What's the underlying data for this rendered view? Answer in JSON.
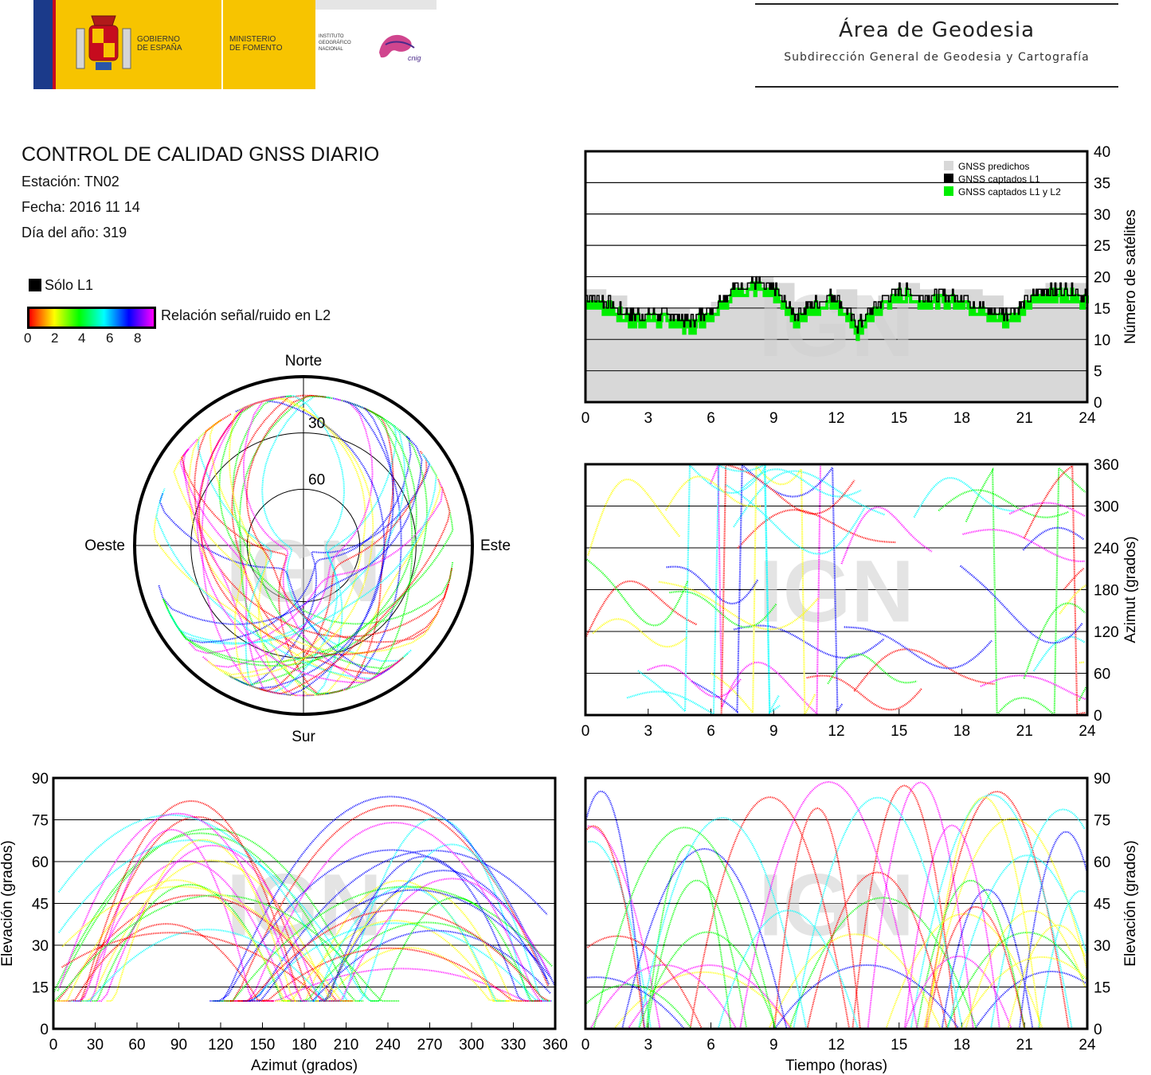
{
  "header": {
    "gov_line1": "GOBIERNO",
    "gov_line2": "DE ESPAÑA",
    "ministry_line1": "MINISTERIO",
    "ministry_line2": "DE FOMENTO",
    "institute_line1": "INSTITUTO",
    "institute_line2": "GEOGRÁFICO",
    "institute_line3": "NACIONAL",
    "institute_mark": "cnig",
    "area_title": "Área de Geodesia",
    "area_subtitle": "Subdirección General de Geodesia y Cartografía"
  },
  "report": {
    "title": "CONTROL DE CALIDAD GNSS DIARIO",
    "station": "Estación: TN02",
    "date": "Fecha: 2016 11 14",
    "day_of_year": "Día del año: 319"
  },
  "legend": {
    "l1_only": "Sólo L1",
    "snr_label": "Relación señal/ruido en L2",
    "snr_ticks": [
      "0",
      "2",
      "4",
      "6",
      "8"
    ],
    "colors": {
      "red": "#ff0000",
      "yellow": "#ffff00",
      "green": "#00ff00",
      "cyan": "#00ffff",
      "blue": "#0000ff",
      "magenta": "#ff00ff"
    }
  },
  "watermark": "IGN",
  "chart_data": [
    {
      "type": "area",
      "ylabel": "Número de satélites",
      "xlim": [
        0,
        24
      ],
      "ylim": [
        0,
        40
      ],
      "x_ticks": [
        "0",
        "3",
        "6",
        "9",
        "12",
        "15",
        "18",
        "21",
        "24"
      ],
      "y_ticks": [
        "0",
        "5",
        "10",
        "15",
        "20",
        "25",
        "30",
        "35",
        "40"
      ],
      "grid": true,
      "legend_placement": "top-right",
      "series": [
        {
          "name": "GNSS predichos",
          "color": "#d8d8d8"
        },
        {
          "name": "GNSS captados L1",
          "color": "#000000"
        },
        {
          "name": "GNSS captados L1 y L2",
          "color": "#00ee00"
        }
      ],
      "x": [
        0,
        1,
        2,
        3,
        4,
        5,
        6,
        7,
        8,
        9,
        10,
        11,
        12,
        13,
        14,
        15,
        16,
        17,
        18,
        19,
        20,
        21,
        22,
        23,
        24
      ],
      "predicted": [
        18,
        17,
        15,
        15,
        15,
        14,
        16,
        19,
        20,
        19,
        16,
        17,
        18,
        14,
        17,
        19,
        18,
        18,
        18,
        17,
        15,
        18,
        19,
        19,
        18
      ],
      "captured_l1": [
        17,
        16,
        14,
        14,
        14,
        13,
        15,
        18,
        19,
        18,
        14,
        16,
        17,
        12,
        16,
        18,
        17,
        17,
        17,
        15,
        14,
        16,
        18,
        18,
        17
      ]
    },
    {
      "type": "scatter",
      "ylabel": "Azimut (grados)",
      "xlim": [
        0,
        24
      ],
      "ylim": [
        0,
        360
      ],
      "x_ticks": [
        "0",
        "3",
        "6",
        "9",
        "12",
        "15",
        "18",
        "21",
        "24"
      ],
      "y_ticks": [
        "0",
        "60",
        "120",
        "180",
        "240",
        "300",
        "360"
      ],
      "grid": true
    },
    {
      "type": "scatter",
      "xlabel": "Azimut (grados)",
      "ylabel": "Elevación (grados)",
      "xlim": [
        0,
        360
      ],
      "ylim": [
        0,
        90
      ],
      "x_ticks": [
        "0",
        "30",
        "60",
        "90",
        "120",
        "150",
        "180",
        "210",
        "240",
        "270",
        "300",
        "330",
        "360"
      ],
      "y_ticks": [
        "0",
        "15",
        "30",
        "45",
        "60",
        "75",
        "90"
      ],
      "grid": true
    },
    {
      "type": "scatter",
      "xlabel": "Tiempo (horas)",
      "ylabel": "Elevación (grados)",
      "xlim": [
        0,
        24
      ],
      "ylim": [
        0,
        90
      ],
      "x_ticks": [
        "0",
        "3",
        "6",
        "9",
        "12",
        "15",
        "18",
        "21",
        "24"
      ],
      "y_ticks": [
        "0",
        "15",
        "30",
        "45",
        "60",
        "75",
        "90"
      ],
      "grid": true
    },
    {
      "type": "scatter",
      "polar": true,
      "direction_labels": {
        "north": "Norte",
        "south": "Sur",
        "east": "Este",
        "west": "Oeste"
      },
      "elevation_rings": [
        "30",
        "60"
      ]
    }
  ]
}
